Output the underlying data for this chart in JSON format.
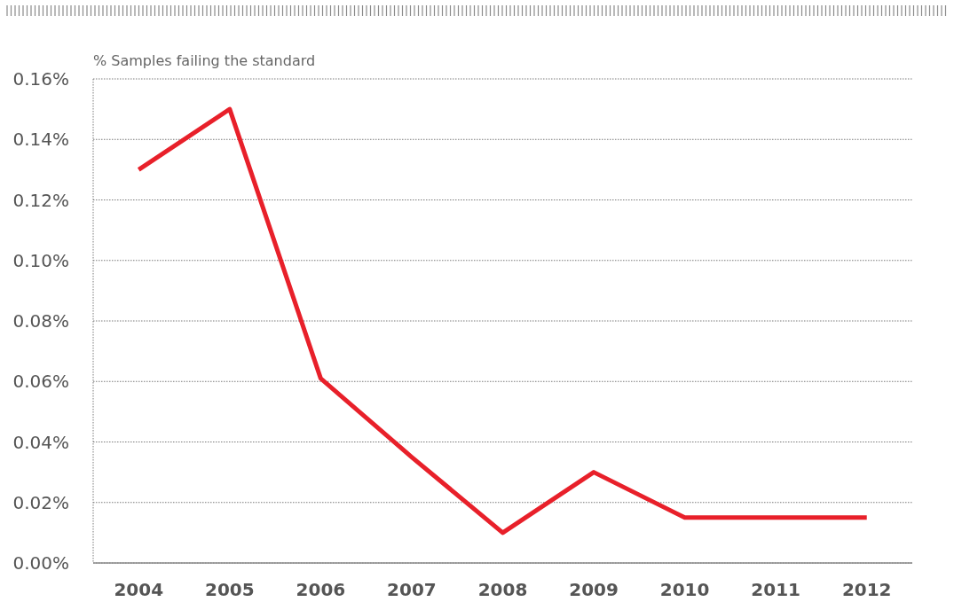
{
  "chart_data": {
    "type": "line",
    "ylabel": "% Samples failing the standard",
    "categories": [
      "2004",
      "2005",
      "2006",
      "2007",
      "2008",
      "2009",
      "2010",
      "2011",
      "2012"
    ],
    "series": [
      {
        "color": "#e8202a",
        "values": [
          0.13,
          0.15,
          0.061,
          0.035,
          0.01,
          0.03,
          0.015,
          0.015,
          0.015
        ]
      }
    ],
    "ylim": [
      0,
      0.16
    ],
    "yticks": [
      {
        "value": 0,
        "label": "0.00%"
      },
      {
        "value": 0.02,
        "label": "0.02%"
      },
      {
        "value": 0.04,
        "label": "0.04%"
      },
      {
        "value": 0.06,
        "label": "0.06%"
      },
      {
        "value": 0.08,
        "label": "0.08%"
      },
      {
        "value": 0.1,
        "label": "0.10%"
      },
      {
        "value": 0.12,
        "label": "0.12%"
      },
      {
        "value": 0.14,
        "label": "0.14%"
      },
      {
        "value": 0.16,
        "label": "0.16%"
      }
    ],
    "grid": "y",
    "marker": "none",
    "line_style": "solid"
  }
}
